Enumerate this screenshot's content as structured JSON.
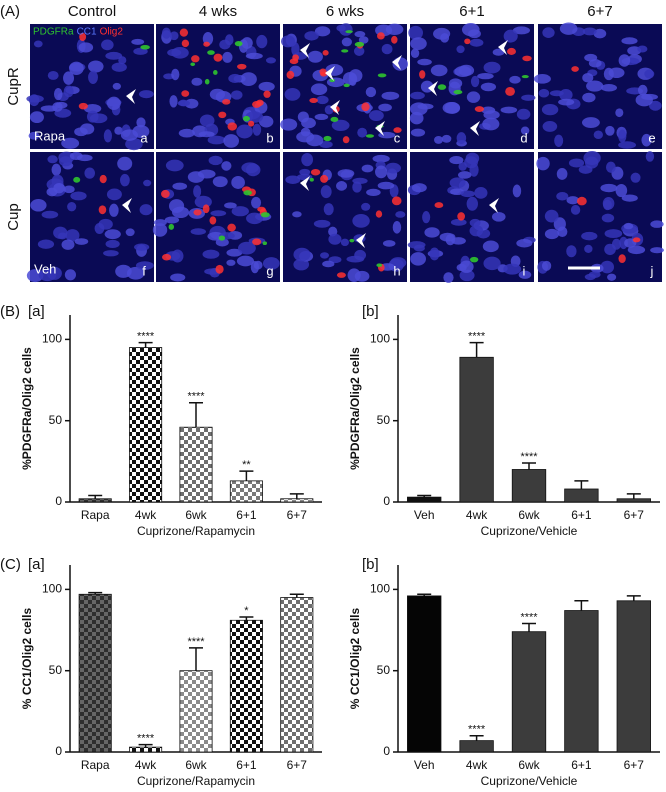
{
  "panel_a": {
    "label": "(A)",
    "columns": [
      "Control",
      "4 wks",
      "6 wks",
      "6+1",
      "6+7"
    ],
    "rows": [
      "CupR",
      "Cup"
    ],
    "treatment_labels": [
      "Rapa",
      "Veh"
    ],
    "stain_legend": [
      {
        "name": "PDGFRa",
        "color": "#2fc42f"
      },
      {
        "name": "CC1",
        "color": "#5a78ff"
      },
      {
        "name": "Olig2",
        "color": "#ff3030"
      }
    ],
    "image_letters": [
      "a",
      "b",
      "c",
      "d",
      "e",
      "f",
      "g",
      "h",
      "i",
      "j"
    ]
  },
  "panel_labels": [
    "(B)",
    "(C)"
  ],
  "chart_data": [
    {
      "type": "bar",
      "title": "[a]",
      "x_label": "Cuprizone/Rapamycin",
      "y_label": "%PDGFRa/Olig2 cells",
      "categories": [
        "Rapa",
        "4wk",
        "6wk",
        "6+1",
        "6+7"
      ],
      "values": [
        2,
        95,
        46,
        13,
        2
      ],
      "errors": [
        2,
        3,
        15,
        6,
        3
      ],
      "significance": [
        null,
        "****",
        "****",
        "**",
        null
      ],
      "checker": true,
      "bar_colors": [
        "#2e2e2e",
        "#111111",
        "#6e6e6e",
        "#7a7a7a",
        "#8a8a8a"
      ],
      "checker_bg": [
        "#666666",
        "#ffffff",
        "#ffffff",
        "#ffffff",
        "#ffffff"
      ],
      "ylim": [
        0,
        115
      ],
      "yticks": [
        0,
        50,
        100
      ]
    },
    {
      "type": "bar",
      "title": "[b]",
      "x_label": "Cuprizone/Vehicle",
      "y_label": "%PDGFRa/Olig2 cells",
      "categories": [
        "Veh",
        "4wk",
        "6wk",
        "6+1",
        "6+7"
      ],
      "values": [
        3,
        89,
        20,
        8,
        2
      ],
      "errors": [
        1,
        9,
        4,
        5,
        3
      ],
      "significance": [
        null,
        "****",
        "****",
        null,
        null
      ],
      "checker": false,
      "bar_colors": [
        "#111111",
        "#3c3c3c",
        "#3c3c3c",
        "#3c3c3c",
        "#3c3c3c"
      ],
      "ylim": [
        0,
        115
      ],
      "yticks": [
        0,
        50,
        100
      ]
    },
    {
      "type": "bar",
      "title": "[a]",
      "x_label": "Cuprizone/Rapamycin",
      "y_label": "% CC1/Olig2 cells",
      "categories": [
        "Rapa",
        "4wk",
        "6wk",
        "6+1",
        "6+7"
      ],
      "values": [
        97,
        3,
        50,
        81,
        95
      ],
      "errors": [
        1,
        1.5,
        14,
        2,
        2
      ],
      "significance": [
        null,
        "****",
        "****",
        "*",
        null
      ],
      "checker": true,
      "bar_colors": [
        "#2e2e2e",
        "#111111",
        "#8a8a8a",
        "#111111",
        "#6e6e6e"
      ],
      "checker_bg": [
        "#666666",
        "#ffffff",
        "#ffffff",
        "#ffffff",
        "#ffffff"
      ],
      "ylim": [
        0,
        115
      ],
      "yticks": [
        0,
        50,
        100
      ]
    },
    {
      "type": "bar",
      "title": "[b]",
      "x_label": "Cuprizone/Vehicle",
      "y_label": "% CC1/Olig2 cells",
      "categories": [
        "Veh",
        "4wk",
        "6wk",
        "6+1",
        "6+7"
      ],
      "values": [
        96,
        7,
        74,
        87,
        93
      ],
      "errors": [
        1,
        3,
        5,
        6,
        3
      ],
      "significance": [
        null,
        "****",
        "****",
        null,
        null
      ],
      "checker": false,
      "bar_colors": [
        "#050505",
        "#3c3c3c",
        "#3c3c3c",
        "#3c3c3c",
        "#3c3c3c"
      ],
      "ylim": [
        0,
        115
      ],
      "yticks": [
        0,
        50,
        100
      ]
    }
  ]
}
